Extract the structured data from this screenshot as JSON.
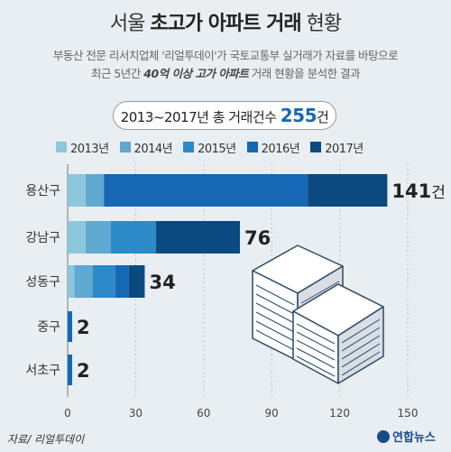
{
  "header": {
    "title_normal_1": "서울 ",
    "title_bold": "초고가 아파트 거래",
    "title_normal_2": " 현황",
    "subtitle_line1": "부동산 전문 리서치업체 '리얼투데이'가 국토교통부 실거래가 자료를 바탕으로",
    "subtitle_line2_pre": "최근 5년간 ",
    "subtitle_line2_bold": "40억 이상 고가 아파트",
    "subtitle_line2_post": " 거래 현황을 분석한 결과"
  },
  "summary": {
    "pre": "2013~2017년 총 거래건수 ",
    "count": "255",
    "post": "건"
  },
  "footer": {
    "source": "자료/ 리얼투데이",
    "logo": "연합뉴스"
  },
  "colors": {
    "2013": "#8cc7dc",
    "2014": "#5fa8cf",
    "2015": "#2b8ac7",
    "2016": "#1667b4",
    "2017": "#0b4a80",
    "background": "#e9eef2"
  },
  "chart_data": {
    "type": "bar",
    "orientation": "horizontal",
    "stacked": true,
    "categories": [
      "용산구",
      "강남구",
      "성동구",
      "중구",
      "서초구"
    ],
    "totals": [
      141,
      76,
      34,
      2,
      2
    ],
    "total_labels": [
      {
        "value": "141",
        "unit": "건"
      },
      {
        "value": "76",
        "unit": ""
      },
      {
        "value": "34",
        "unit": ""
      },
      {
        "value": "2",
        "unit": ""
      },
      {
        "value": "2",
        "unit": ""
      }
    ],
    "series": [
      {
        "name": "2013년",
        "values": [
          8,
          8,
          3,
          0,
          0
        ]
      },
      {
        "name": "2014년",
        "values": [
          8,
          11,
          8,
          0,
          0
        ]
      },
      {
        "name": "2015년",
        "values": [
          0,
          20,
          10,
          0,
          0
        ]
      },
      {
        "name": "2016년",
        "values": [
          90,
          0,
          6,
          2,
          2
        ]
      },
      {
        "name": "2017년",
        "values": [
          35,
          37,
          7,
          0,
          0
        ]
      }
    ],
    "xlim": [
      0,
      150
    ],
    "xticks": [
      0,
      30,
      60,
      90,
      120,
      150
    ],
    "grid": true,
    "legend_position": "top"
  }
}
